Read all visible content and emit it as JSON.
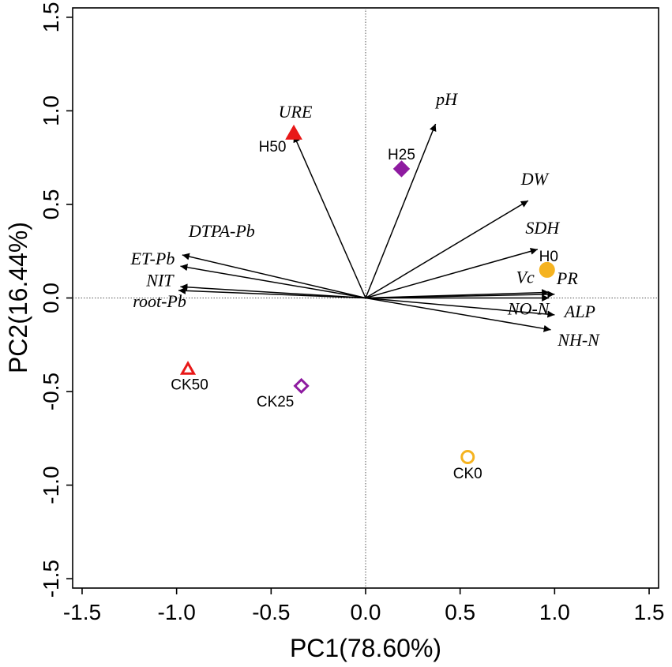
{
  "chart_data": {
    "type": "scatter",
    "subtype": "pca-biplot",
    "xlabel": "PC1(78.60%)",
    "ylabel": "PC2(16.44%)",
    "xlim": [
      -1.55,
      1.55
    ],
    "ylim": [
      -1.55,
      1.55
    ],
    "xticks": [
      -1.5,
      -1.0,
      -0.5,
      0.0,
      0.5,
      1.0,
      1.5
    ],
    "yticks": [
      -1.5,
      -1.0,
      -0.5,
      0.0,
      0.5,
      1.0,
      1.5
    ],
    "tick_labels": [
      "-1.5",
      "-1.0",
      "-0.5",
      "0.0",
      "0.5",
      "1.0",
      "1.5"
    ],
    "reference_lines": {
      "x": 0,
      "y": 0,
      "style": "dotted"
    },
    "loadings": [
      {
        "name": "URE",
        "x": -0.38,
        "y": 0.87
      },
      {
        "name": "pH",
        "x": 0.37,
        "y": 0.93
      },
      {
        "name": "DW",
        "x": 0.86,
        "y": 0.52
      },
      {
        "name": "SDH",
        "x": 0.91,
        "y": 0.26
      },
      {
        "name": "Vc",
        "x": 0.97,
        "y": 0.03
      },
      {
        "name": "PR",
        "x": 1.0,
        "y": 0.02
      },
      {
        "name": "NO-N",
        "x": 0.97,
        "y": 0.0
      },
      {
        "name": "ALP",
        "x": 1.0,
        "y": -0.09
      },
      {
        "name": "NH-N",
        "x": 0.98,
        "y": -0.17
      },
      {
        "name": "DTPA-Pb",
        "x": -0.97,
        "y": 0.23
      },
      {
        "name": "ET-Pb",
        "x": -0.98,
        "y": 0.17
      },
      {
        "name": "NIT",
        "x": -0.98,
        "y": 0.06
      },
      {
        "name": "root-Pb",
        "x": -0.99,
        "y": 0.04
      }
    ],
    "samples": [
      {
        "name": "H0",
        "x": 0.96,
        "y": 0.15,
        "marker": "circle",
        "filled": true,
        "color": "#F5B320"
      },
      {
        "name": "H25",
        "x": 0.19,
        "y": 0.69,
        "marker": "diamond",
        "filled": true,
        "color": "#8E1BA0"
      },
      {
        "name": "H50",
        "x": -0.38,
        "y": 0.88,
        "marker": "triangle",
        "filled": true,
        "color": "#E81818"
      },
      {
        "name": "CK0",
        "x": 0.54,
        "y": -0.85,
        "marker": "circle",
        "filled": false,
        "color": "#F5B320"
      },
      {
        "name": "CK25",
        "x": -0.34,
        "y": -0.47,
        "marker": "diamond",
        "filled": false,
        "color": "#8E1BA0"
      },
      {
        "name": "CK50",
        "x": -0.94,
        "y": -0.38,
        "marker": "triangle",
        "filled": false,
        "color": "#E81818"
      }
    ]
  }
}
